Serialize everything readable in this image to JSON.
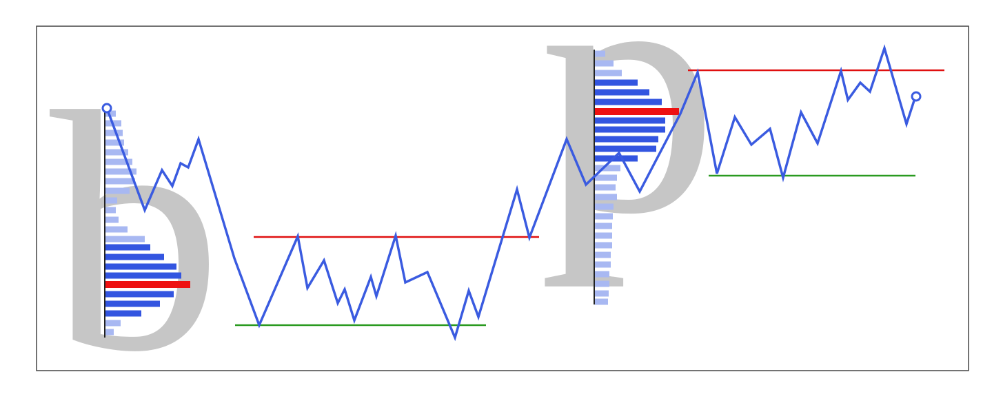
{
  "letters": [
    "b",
    "p"
  ]
}
